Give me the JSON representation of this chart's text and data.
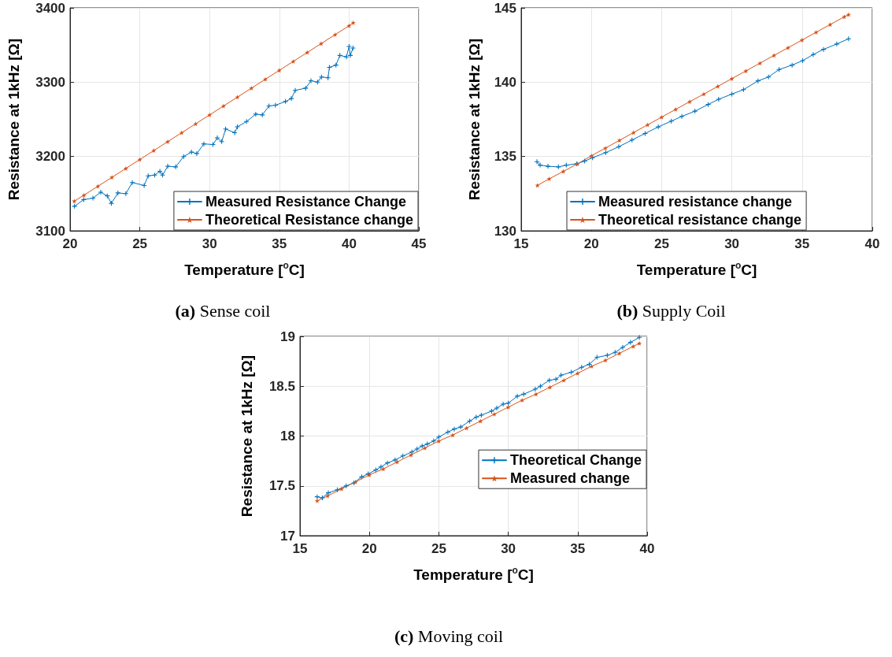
{
  "chart_data": [
    {
      "type": "line",
      "xlabel": "Temperature [$^{o}$C]",
      "ylabel": "Resistance at 1kHz [Ω]",
      "annotations": [
        "(a) Sense coil"
      ],
      "xlim": [
        20,
        45
      ],
      "xticks": [
        20,
        25,
        30,
        35,
        40,
        45
      ],
      "ylim": [
        3100,
        3400
      ],
      "yticks": [
        3100,
        3200,
        3300,
        3400
      ],
      "grid": true,
      "legend": "bottom right",
      "line_style": "solid",
      "series": [
        {
          "name": "Measured Resistance Change",
          "color": "#0072bd",
          "marker": "cross",
          "x": [
            20.32,
            20.98,
            21.64,
            22.2,
            22.67,
            22.96,
            23.43,
            24.0,
            24.46,
            25.31,
            25.6,
            26.06,
            26.44,
            26.63,
            27.0,
            27.57,
            28.14,
            28.7,
            29.08,
            29.59,
            30.24,
            30.55,
            30.87,
            31.15,
            31.8,
            31.99,
            32.65,
            33.31,
            33.78,
            34.26,
            34.72,
            35.44,
            35.86,
            36.14,
            36.89,
            37.27,
            37.74,
            38.02,
            38.49,
            38.59,
            39.06,
            39.34,
            39.81,
            40.0,
            40.09,
            40.28
          ],
          "values": [
            3133,
            3142,
            3144,
            3152,
            3147,
            3137,
            3151,
            3150,
            3165,
            3161,
            3174,
            3175,
            3180,
            3175,
            3187,
            3186,
            3200,
            3206,
            3204,
            3217,
            3216,
            3225,
            3220,
            3237,
            3232,
            3240,
            3247,
            3257,
            3256,
            3268,
            3269,
            3274,
            3278,
            3289,
            3292,
            3302,
            3300,
            3307,
            3306,
            3320,
            3323,
            3336,
            3334,
            3348,
            3336,
            3346
          ]
        },
        {
          "name": "Theoretical Resistance change",
          "color": "#d95319",
          "marker": "star",
          "x": [
            20.3,
            21,
            22,
            23,
            24,
            25,
            26,
            27,
            28,
            29,
            30,
            31,
            32,
            33,
            34,
            35,
            36,
            37,
            38,
            39,
            40,
            40.3
          ],
          "values": [
            3140,
            3148,
            3160,
            3172,
            3184,
            3196,
            3208,
            3220,
            3232,
            3244,
            3256,
            3268,
            3280,
            3292,
            3304,
            3316,
            3328,
            3340,
            3352,
            3364,
            3376,
            3380
          ]
        }
      ]
    },
    {
      "type": "line",
      "xlabel": "Temperature [$^{o}$C]",
      "ylabel": "Resistance at 1kHz [Ω]",
      "annotations": [
        "(b) Supply Coil"
      ],
      "xlim": [
        15,
        40
      ],
      "xticks": [
        15,
        20,
        25,
        30,
        35,
        40
      ],
      "ylim": [
        130,
        145
      ],
      "yticks": [
        130,
        135,
        140,
        145
      ],
      "grid": true,
      "legend": "bottom",
      "line_style": "solid",
      "series": [
        {
          "name": "Measured resistance change",
          "color": "#0072bd",
          "marker": "cross",
          "x": [
            16.12,
            16.35,
            16.91,
            17.65,
            18.21,
            18.96,
            19.52,
            20.08,
            21.02,
            21.95,
            22.89,
            23.82,
            24.76,
            25.69,
            26.44,
            27.37,
            28.31,
            29.06,
            30.0,
            30.83,
            31.86,
            32.61,
            33.36,
            34.29,
            35.04,
            35.79,
            36.53,
            37.47,
            38.31
          ],
          "values": [
            134.65,
            134.42,
            134.34,
            134.3,
            134.42,
            134.51,
            134.69,
            134.92,
            135.26,
            135.66,
            136.11,
            136.55,
            136.99,
            137.38,
            137.7,
            138.05,
            138.5,
            138.85,
            139.2,
            139.5,
            140.09,
            140.35,
            140.85,
            141.15,
            141.45,
            141.86,
            142.21,
            142.57,
            142.92
          ]
        },
        {
          "name": "Theoretical resistance change",
          "color": "#d95319",
          "marker": "star",
          "x": [
            16.16,
            17,
            18,
            19,
            20,
            21,
            22,
            23,
            24,
            25,
            26,
            27,
            28,
            29,
            30,
            31,
            32,
            33,
            34,
            35,
            36,
            37,
            38,
            38.31
          ],
          "values": [
            133.06,
            133.5,
            134.0,
            134.5,
            135.05,
            135.57,
            136.09,
            136.61,
            137.13,
            137.65,
            138.17,
            138.69,
            139.2,
            139.72,
            140.24,
            140.76,
            141.28,
            141.8,
            142.32,
            142.84,
            143.36,
            143.88,
            144.4,
            144.55
          ]
        }
      ]
    },
    {
      "type": "line",
      "xlabel": "Temperature [$^{o}$C]",
      "ylabel": "Resistance at 1kHz [Ω]",
      "annotations": [
        "(c) Moving coil"
      ],
      "xlim": [
        15,
        40
      ],
      "xticks": [
        15,
        20,
        25,
        30,
        35,
        40
      ],
      "ylim": [
        17,
        19
      ],
      "yticks": [
        17,
        17.5,
        18,
        18.5,
        19
      ],
      "grid": true,
      "legend": "right",
      "line_style": "solid",
      "series": [
        {
          "name": "Theoretical Change",
          "color": "#0072bd",
          "marker": "cross",
          "x": [
            16.24,
            16.61,
            17.04,
            17.69,
            18.33,
            18.89,
            19.44,
            19.91,
            20.46,
            20.83,
            21.3,
            21.85,
            22.41,
            23.06,
            23.43,
            23.8,
            24.17,
            24.63,
            25.0,
            25.65,
            26.11,
            26.57,
            27.22,
            27.69,
            28.06,
            28.8,
            29.17,
            29.63,
            30.0,
            30.65,
            31.11,
            31.94,
            32.31,
            32.96,
            33.43,
            33.8,
            34.54,
            35.28,
            35.83,
            36.39,
            37.13,
            37.69,
            38.24,
            38.8,
            39.44
          ],
          "values": [
            17.39,
            17.38,
            17.43,
            17.46,
            17.5,
            17.53,
            17.59,
            17.62,
            17.66,
            17.69,
            17.73,
            17.76,
            17.8,
            17.84,
            17.87,
            17.9,
            17.92,
            17.95,
            17.99,
            18.04,
            18.07,
            18.09,
            18.15,
            18.19,
            18.21,
            18.25,
            18.28,
            18.32,
            18.33,
            18.4,
            18.42,
            18.47,
            18.5,
            18.56,
            18.57,
            18.61,
            18.64,
            18.69,
            18.72,
            18.79,
            18.81,
            18.84,
            18.89,
            18.94,
            18.99
          ]
        },
        {
          "name": "Measured change",
          "color": "#d95319",
          "marker": "star",
          "x": [
            16.24,
            17,
            18,
            19,
            20,
            21,
            22,
            23,
            24,
            25,
            26,
            27,
            28,
            29,
            30,
            31,
            32,
            33,
            34,
            35,
            36,
            37,
            38,
            39,
            39.44
          ],
          "values": [
            17.35,
            17.4,
            17.47,
            17.54,
            17.61,
            17.67,
            17.74,
            17.81,
            17.88,
            17.95,
            18.01,
            18.08,
            18.15,
            18.22,
            18.29,
            18.36,
            18.42,
            18.49,
            18.56,
            18.63,
            18.7,
            18.76,
            18.83,
            18.9,
            18.93
          ]
        }
      ]
    }
  ]
}
